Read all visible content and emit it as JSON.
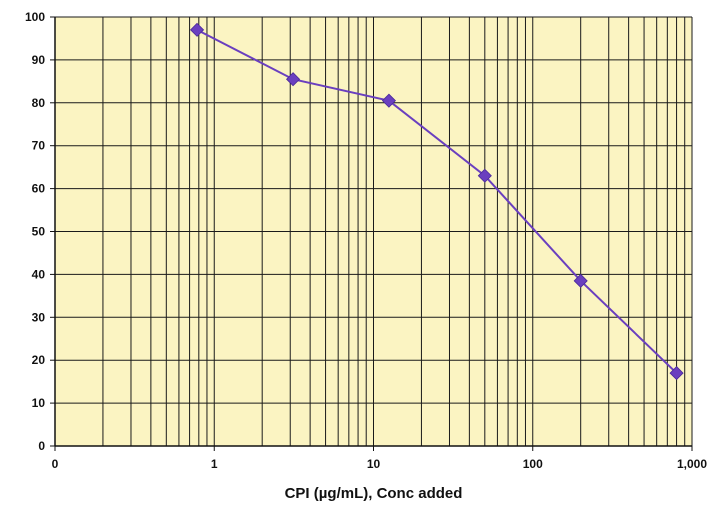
{
  "colors": {
    "plot_background": "#FBF4C2",
    "grid": "#1a1a1a",
    "axis": "#111111",
    "series": "#6A3FBF",
    "marker": "#6A3FBF"
  },
  "chart_data": {
    "type": "scatter",
    "title": "",
    "xlabel": "CPI (µg/mL), Conc added",
    "ylabel": "",
    "x_scale": "log",
    "xlim": [
      0.1,
      1000
    ],
    "ylim": [
      0,
      100
    ],
    "grid": true,
    "legend": "none",
    "x_tick_labels": [
      {
        "value": 0.1,
        "label": "0"
      },
      {
        "value": 1,
        "label": "1"
      },
      {
        "value": 10,
        "label": "10"
      },
      {
        "value": 100,
        "label": "100"
      },
      {
        "value": 1000,
        "label": "1,000"
      }
    ],
    "y_ticks": [
      0,
      10,
      20,
      30,
      40,
      50,
      60,
      70,
      80,
      90,
      100
    ],
    "series": [
      {
        "x": [
          0.78,
          3.125,
          12.5,
          50,
          200,
          800
        ],
        "y": [
          97,
          85.5,
          80.5,
          63,
          38.5,
          17
        ]
      }
    ]
  }
}
